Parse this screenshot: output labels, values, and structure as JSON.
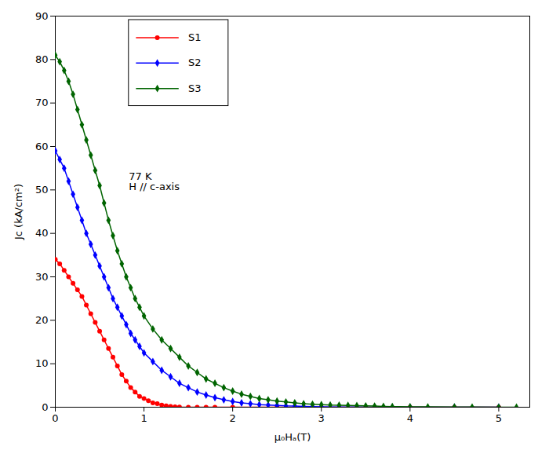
{
  "chart_data": {
    "type": "line",
    "xlabel": "μ₀Hₐ(T)",
    "ylabel": "Jc (kA/cm²)",
    "xlim": [
      0,
      5.35
    ],
    "ylim": [
      0,
      90
    ],
    "xticks": [
      0,
      1,
      2,
      3,
      4,
      5
    ],
    "yticks": [
      0,
      10,
      20,
      30,
      40,
      50,
      60,
      70,
      80,
      90
    ],
    "grid": false,
    "legend": "upper left",
    "annotation": "77 K\nH // c-axis",
    "series": [
      {
        "name": "S1",
        "color": "#ff0000",
        "marker": "circle",
        "x": [
          0.0,
          0.05,
          0.1,
          0.15,
          0.2,
          0.25,
          0.3,
          0.35,
          0.4,
          0.45,
          0.5,
          0.55,
          0.6,
          0.65,
          0.7,
          0.75,
          0.8,
          0.85,
          0.9,
          0.95,
          1.0,
          1.05,
          1.1,
          1.15,
          1.2,
          1.25,
          1.3,
          1.35,
          1.4,
          1.5,
          1.6,
          1.7,
          1.8,
          2.0,
          2.5,
          3.0,
          3.5,
          4.0,
          4.5,
          5.0
        ],
        "values": [
          34.0,
          33.0,
          31.5,
          30.0,
          28.5,
          27.0,
          25.5,
          23.5,
          21.5,
          19.5,
          17.5,
          15.5,
          13.5,
          11.5,
          9.5,
          7.5,
          6.0,
          4.5,
          3.5,
          2.5,
          2.0,
          1.5,
          1.0,
          0.8,
          0.5,
          0.3,
          0.2,
          0.1,
          0.05,
          0.0,
          0.0,
          0.0,
          0.0,
          0.0,
          0.0,
          0.0,
          0.0,
          0.0,
          0.0,
          0.0
        ]
      },
      {
        "name": "S2",
        "color": "#0000ff",
        "marker": "diamond",
        "x": [
          0.0,
          0.05,
          0.1,
          0.15,
          0.2,
          0.25,
          0.3,
          0.35,
          0.4,
          0.45,
          0.5,
          0.55,
          0.6,
          0.65,
          0.7,
          0.75,
          0.8,
          0.85,
          0.9,
          0.95,
          1.0,
          1.1,
          1.2,
          1.3,
          1.4,
          1.5,
          1.6,
          1.7,
          1.8,
          1.9,
          2.0,
          2.1,
          2.2,
          2.3,
          2.4,
          2.5,
          2.6,
          2.7,
          2.8,
          2.9,
          3.0,
          3.2,
          3.4,
          3.6,
          3.8,
          4.0,
          4.5,
          5.0
        ],
        "values": [
          59.0,
          57.0,
          55.0,
          52.0,
          49.0,
          46.0,
          43.0,
          40.0,
          37.5,
          35.0,
          32.5,
          30.0,
          27.5,
          25.0,
          23.0,
          21.0,
          19.0,
          17.0,
          15.5,
          14.0,
          12.5,
          10.5,
          8.5,
          7.0,
          5.5,
          4.5,
          3.5,
          2.8,
          2.2,
          1.7,
          1.3,
          1.0,
          0.8,
          0.6,
          0.5,
          0.4,
          0.3,
          0.25,
          0.2,
          0.15,
          0.1,
          0.06,
          0.03,
          0.01,
          0.0,
          0.0,
          0.0,
          0.0
        ]
      },
      {
        "name": "S3",
        "color": "#006400",
        "marker": "diamond",
        "x": [
          0.0,
          0.05,
          0.1,
          0.15,
          0.2,
          0.25,
          0.3,
          0.35,
          0.4,
          0.45,
          0.5,
          0.55,
          0.6,
          0.65,
          0.7,
          0.75,
          0.8,
          0.85,
          0.9,
          0.95,
          1.0,
          1.1,
          1.2,
          1.3,
          1.4,
          1.5,
          1.6,
          1.7,
          1.8,
          1.9,
          2.0,
          2.1,
          2.2,
          2.3,
          2.4,
          2.5,
          2.6,
          2.7,
          2.8,
          2.9,
          3.0,
          3.1,
          3.2,
          3.3,
          3.4,
          3.5,
          3.6,
          3.7,
          3.8,
          4.0,
          4.2,
          4.5,
          4.7,
          5.0,
          5.2
        ],
        "values": [
          81.0,
          79.5,
          77.5,
          75.0,
          72.0,
          68.5,
          65.0,
          61.5,
          58.0,
          54.5,
          51.0,
          47.0,
          43.0,
          39.5,
          36.0,
          33.0,
          30.0,
          27.5,
          25.0,
          23.0,
          21.0,
          18.0,
          15.5,
          13.5,
          11.5,
          9.5,
          8.0,
          6.5,
          5.5,
          4.5,
          3.7,
          3.0,
          2.5,
          2.0,
          1.7,
          1.4,
          1.2,
          1.0,
          0.8,
          0.7,
          0.6,
          0.5,
          0.45,
          0.4,
          0.35,
          0.3,
          0.25,
          0.2,
          0.15,
          0.1,
          0.07,
          0.05,
          0.03,
          0.01,
          0.0
        ]
      }
    ]
  }
}
